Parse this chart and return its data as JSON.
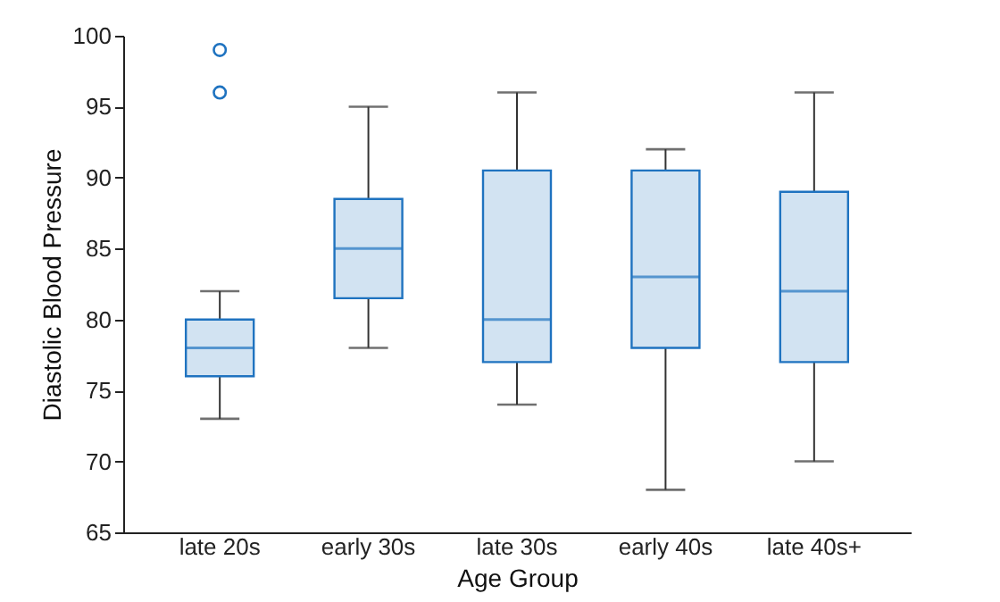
{
  "chart_data": {
    "type": "box",
    "xlabel": "Age Group",
    "ylabel": "Diastolic Blood Pressure",
    "categories": [
      "late 20s",
      "early 30s",
      "late 30s",
      "early 40s",
      "late 40s+"
    ],
    "boxes": [
      {
        "low": 73,
        "q1": 76,
        "median": 78,
        "q3": 80,
        "high": 82,
        "outliers": [
          96,
          99
        ]
      },
      {
        "low": 78,
        "q1": 81.5,
        "median": 85,
        "q3": 88.5,
        "high": 95
      },
      {
        "low": 74,
        "q1": 77,
        "median": 80,
        "q3": 90.5,
        "high": 96
      },
      {
        "low": 68,
        "q1": 78,
        "median": 83,
        "q3": 90.5,
        "high": 92
      },
      {
        "low": 70,
        "q1": 77,
        "median": 82,
        "q3": 89,
        "high": 96
      }
    ],
    "color": "#1f73c0",
    "ylim": [
      65,
      100
    ],
    "yticks": [
      65,
      70,
      75,
      80,
      85,
      90,
      95,
      100
    ],
    "grid": false
  }
}
